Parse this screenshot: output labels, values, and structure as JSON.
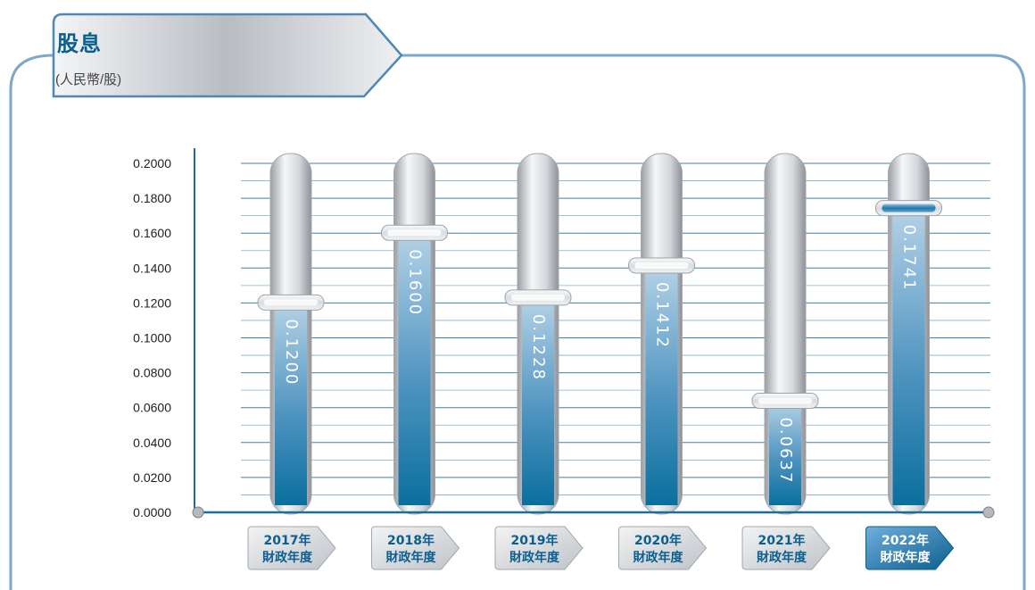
{
  "header": {
    "title": "股息",
    "unit": "(人民幣/股)"
  },
  "colors": {
    "frame": "#7ea8c8",
    "axis": "#1a6e9e",
    "grid": "#1a6e9e",
    "bar_top": "#a9cbe2",
    "bar_bottom": "#0a6f9e",
    "tube": "#cfd2d6",
    "label_active_bg": "#2a7fb3",
    "label_bg": "#d8dadd"
  },
  "chart_data": {
    "type": "bar",
    "title": "股息",
    "ylabel": "(人民幣/股)",
    "ylim": [
      0,
      0.2
    ],
    "yticks": [
      "0.0000",
      "0.0200",
      "0.0400",
      "0.0600",
      "0.0800",
      "0.1000",
      "0.1200",
      "0.1400",
      "0.1600",
      "0.1800",
      "0.2000"
    ],
    "categories": [
      {
        "year": "2017年",
        "suffix": "財政年度"
      },
      {
        "year": "2018年",
        "suffix": "財政年度"
      },
      {
        "year": "2019年",
        "suffix": "財政年度"
      },
      {
        "year": "2020年",
        "suffix": "財政年度"
      },
      {
        "year": "2021年",
        "suffix": "財政年度"
      },
      {
        "year": "2022年",
        "suffix": "財政年度"
      }
    ],
    "values": [
      0.12,
      0.16,
      0.1228,
      0.1412,
      0.0637,
      0.1741
    ],
    "value_labels": [
      "0.1200",
      "0.1600",
      "0.1228",
      "0.1412",
      "0.0637",
      "0.1741"
    ],
    "highlight_index": 5,
    "grid": true
  }
}
